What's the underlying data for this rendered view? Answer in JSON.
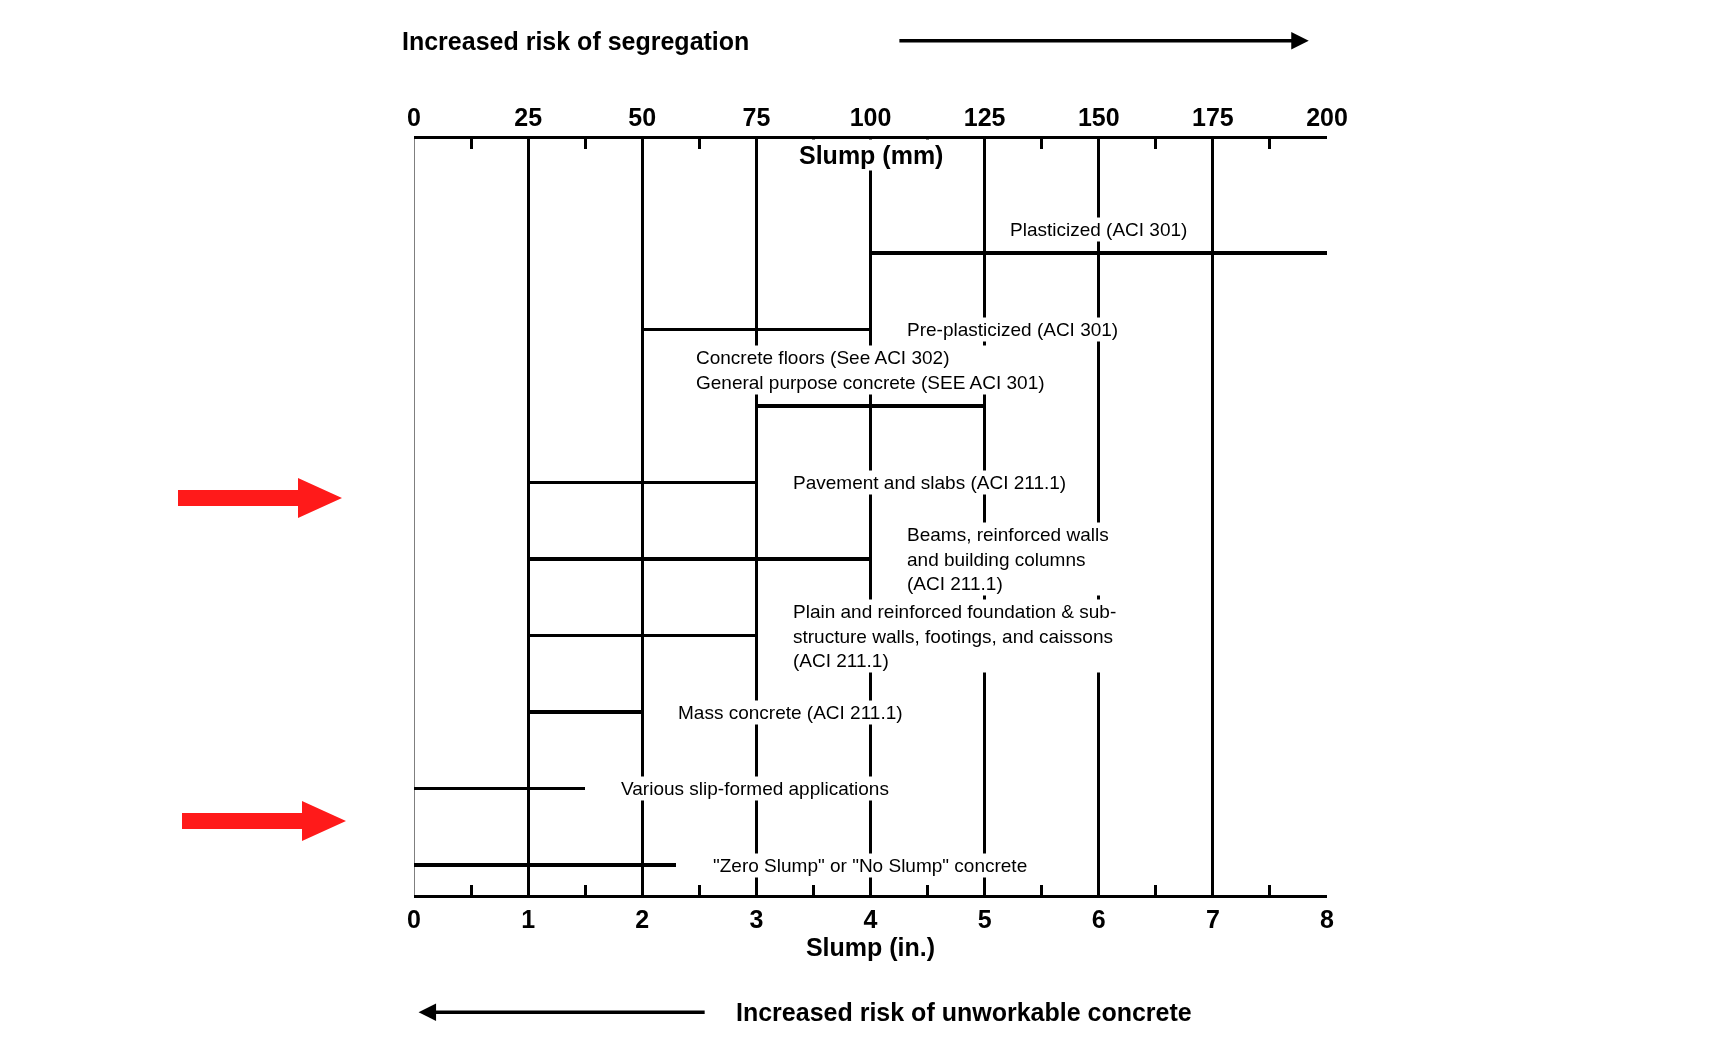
{
  "chart_data": {
    "type": "bar",
    "orientation": "horizontal",
    "categories": [
      "Plasticized (ACI 301)",
      "Pre-plasticized (ACI 301)",
      "Concrete floors (See ACI 302)\nGeneral purpose concrete (SEE ACI 301)",
      "Pavement and slabs (ACI 211.1)",
      "Beams, reinforced walls\nand building columns\n(ACI 211.1)",
      "Plain and reinforced foundation & sub-\nstructure walls, footings, and caissons\n(ACI 211.1)",
      "Mass concrete (ACI 211.1)",
      "Various slip-formed applications",
      "\"Zero Slump\" or \"No Slump\" concrete"
    ],
    "base": [
      4,
      2,
      3,
      1,
      1,
      1,
      1,
      0,
      0
    ],
    "values": [
      4,
      2,
      2,
      2,
      3,
      2,
      1,
      1.5,
      2.3
    ],
    "color": "#000000",
    "xlabel": "Slump (in.)",
    "x2label": "Slump (mm)",
    "xlim": [
      0,
      8
    ],
    "xticks": [
      0,
      {
        "value": 0.5,
        "label": null
      },
      1,
      {
        "value": 1.5,
        "label": null
      },
      2,
      {
        "value": 2.5,
        "label": null
      },
      3,
      {
        "value": 3.5,
        "label": null
      },
      4,
      {
        "value": 4.5,
        "label": null
      },
      5,
      {
        "value": 5.5,
        "label": null
      },
      6,
      {
        "value": 6.5,
        "label": null
      },
      7,
      {
        "value": 7.5,
        "label": null
      },
      8
    ],
    "x2lim": [
      0,
      200
    ],
    "x2ticks": [
      0,
      {
        "value": 12.5,
        "label": null
      },
      25,
      {
        "value": 37.5,
        "label": null
      },
      50,
      {
        "value": 62.5,
        "label": null
      },
      75,
      {
        "value": 87.5,
        "label": null
      },
      100,
      {
        "value": 112.5,
        "label": null
      },
      125,
      {
        "value": 137.5,
        "label": null
      },
      150,
      {
        "value": 162.5,
        "label": null
      },
      175,
      {
        "value": 187.5,
        "label": null
      },
      200
    ],
    "tick_labels": "x",
    "grid": "x",
    "annotations": [
      "Increased risk of segregation",
      "Increased risk of unworkable concrete"
    ]
  }
}
